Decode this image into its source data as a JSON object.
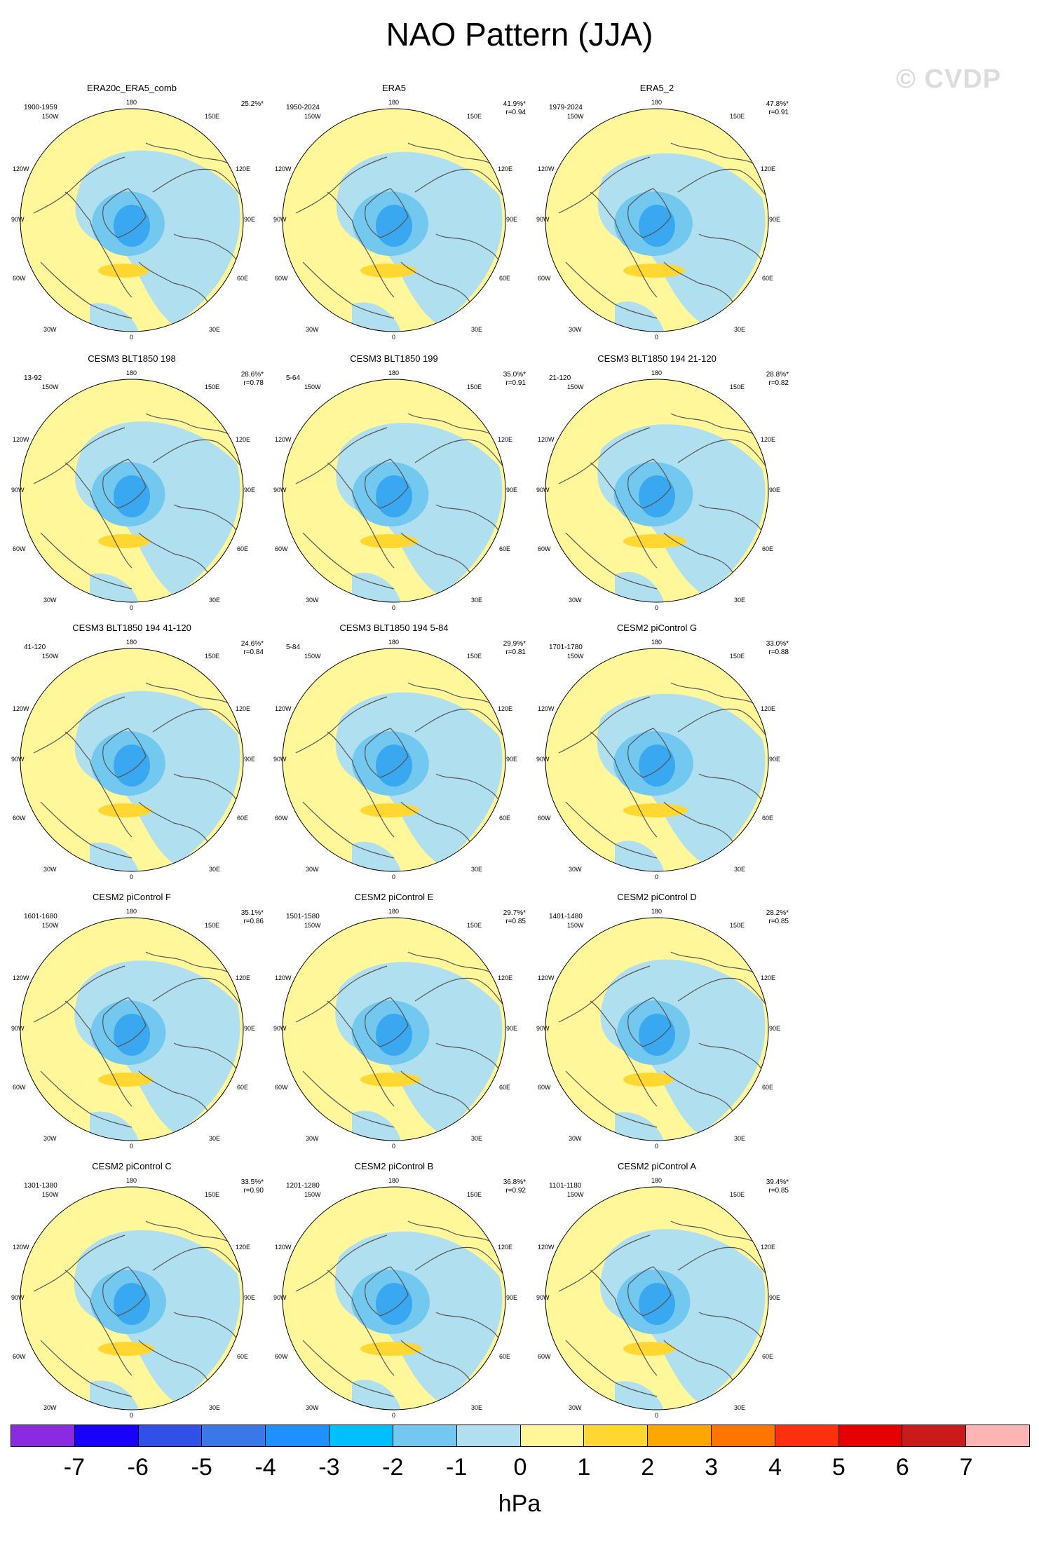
{
  "title": "NAO Pattern (JJA)",
  "watermark": "© CVDP",
  "lon_labels": {
    "l180": "180",
    "l150w": "150W",
    "l150e": "150E",
    "l120w": "120W",
    "l120e": "120E",
    "l90w": "90W",
    "l90e": "90E",
    "l60w": "60W",
    "l60e": "60E",
    "l30w": "30W",
    "l30e": "30E",
    "l0": "0"
  },
  "panels": [
    {
      "title": "ERA20c_ERA5_comb",
      "period": "1900-1959",
      "pct": "25.2%*",
      "corr": ""
    },
    {
      "title": "ERA5",
      "period": "1950-2024",
      "pct": "41.9%*",
      "corr": "r=0.94"
    },
    {
      "title": "ERA5_2",
      "period": "1979-2024",
      "pct": "47.8%*",
      "corr": "r=0.91"
    },
    {
      "title": "CESM3 BLT1850 198",
      "period": "13-92",
      "pct": "28.6%*",
      "corr": "r=0.78"
    },
    {
      "title": "CESM3 BLT1850 199",
      "period": "5-64",
      "pct": "35.0%*",
      "corr": "r=0.91"
    },
    {
      "title": "CESM3 BLT1850 194 21-120",
      "period": "21-120",
      "pct": "28.8%*",
      "corr": "r=0.82"
    },
    {
      "title": "CESM3 BLT1850 194 41-120",
      "period": "41-120",
      "pct": "24.6%*",
      "corr": "r=0.84"
    },
    {
      "title": "CESM3 BLT1850 194 5-84",
      "period": "5-84",
      "pct": "29.9%*",
      "corr": "r=0.81"
    },
    {
      "title": "CESM2 piControl G",
      "period": "1701-1780",
      "pct": "33.0%*",
      "corr": "r=0.88"
    },
    {
      "title": "CESM2 piControl F",
      "period": "1601-1680",
      "pct": "35.1%*",
      "corr": "r=0.86"
    },
    {
      "title": "CESM2 piControl E",
      "period": "1501-1580",
      "pct": "29.7%*",
      "corr": "r=0.85"
    },
    {
      "title": "CESM2 piControl D",
      "period": "1401-1480",
      "pct": "28.2%*",
      "corr": "r=0.85"
    },
    {
      "title": "CESM2 piControl C",
      "period": "1301-1380",
      "pct": "33.5%*",
      "corr": "r=0.90"
    },
    {
      "title": "CESM2 piControl B",
      "period": "1201-1280",
      "pct": "36.8%*",
      "corr": "r=0.92"
    },
    {
      "title": "CESM2 piControl A",
      "period": "1101-1180",
      "pct": "39.4%*",
      "corr": "r=0.85"
    }
  ],
  "colorbar": {
    "unit": "hPa",
    "ticks": [
      "-7",
      "-6",
      "-5",
      "-4",
      "-3",
      "-2",
      "-1",
      "0",
      "1",
      "2",
      "3",
      "4",
      "5",
      "6",
      "7"
    ],
    "colors": [
      "#8a2be2",
      "#1a00ff",
      "#3050e8",
      "#3a78e8",
      "#1e90ff",
      "#00bfff",
      "#73c8f0",
      "#b0e0f0",
      "#fff79a",
      "#ffd730",
      "#ffa500",
      "#ff7500",
      "#ff3010",
      "#e60000",
      "#cc1a1a",
      "#ffb4b4"
    ]
  },
  "map_colors": {
    "background_yellow": "#fff79a",
    "light_blue": "#b0e0f0",
    "mid_blue": "#73c8f0",
    "deep_blue": "#3aa8f0",
    "orange": "#ffd730",
    "coast": "#555555"
  }
}
